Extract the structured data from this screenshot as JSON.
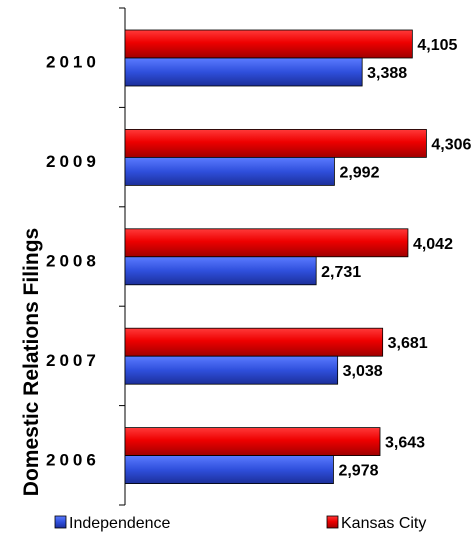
{
  "chart_data": {
    "type": "bar",
    "orientation": "horizontal",
    "ylabel": "Domestic Relations Filings",
    "categories": [
      "2010",
      "2009",
      "2008",
      "2007",
      "2006"
    ],
    "series": [
      {
        "name": "Kansas City",
        "color": "#ff0000",
        "values": [
          4105,
          4306,
          4042,
          3681,
          3643
        ],
        "labels": [
          "4,105",
          "4,306",
          "4,042",
          "3,681",
          "3,643"
        ]
      },
      {
        "name": "Independence",
        "color": "#3a55d6",
        "values": [
          3388,
          2992,
          2731,
          3038,
          2978
        ],
        "labels": [
          "3,388",
          "2,992",
          "2,731",
          "3,038",
          "2,978"
        ]
      }
    ],
    "xlim": [
      0,
      5000
    ],
    "grid": false,
    "legend_position": "bottom"
  }
}
